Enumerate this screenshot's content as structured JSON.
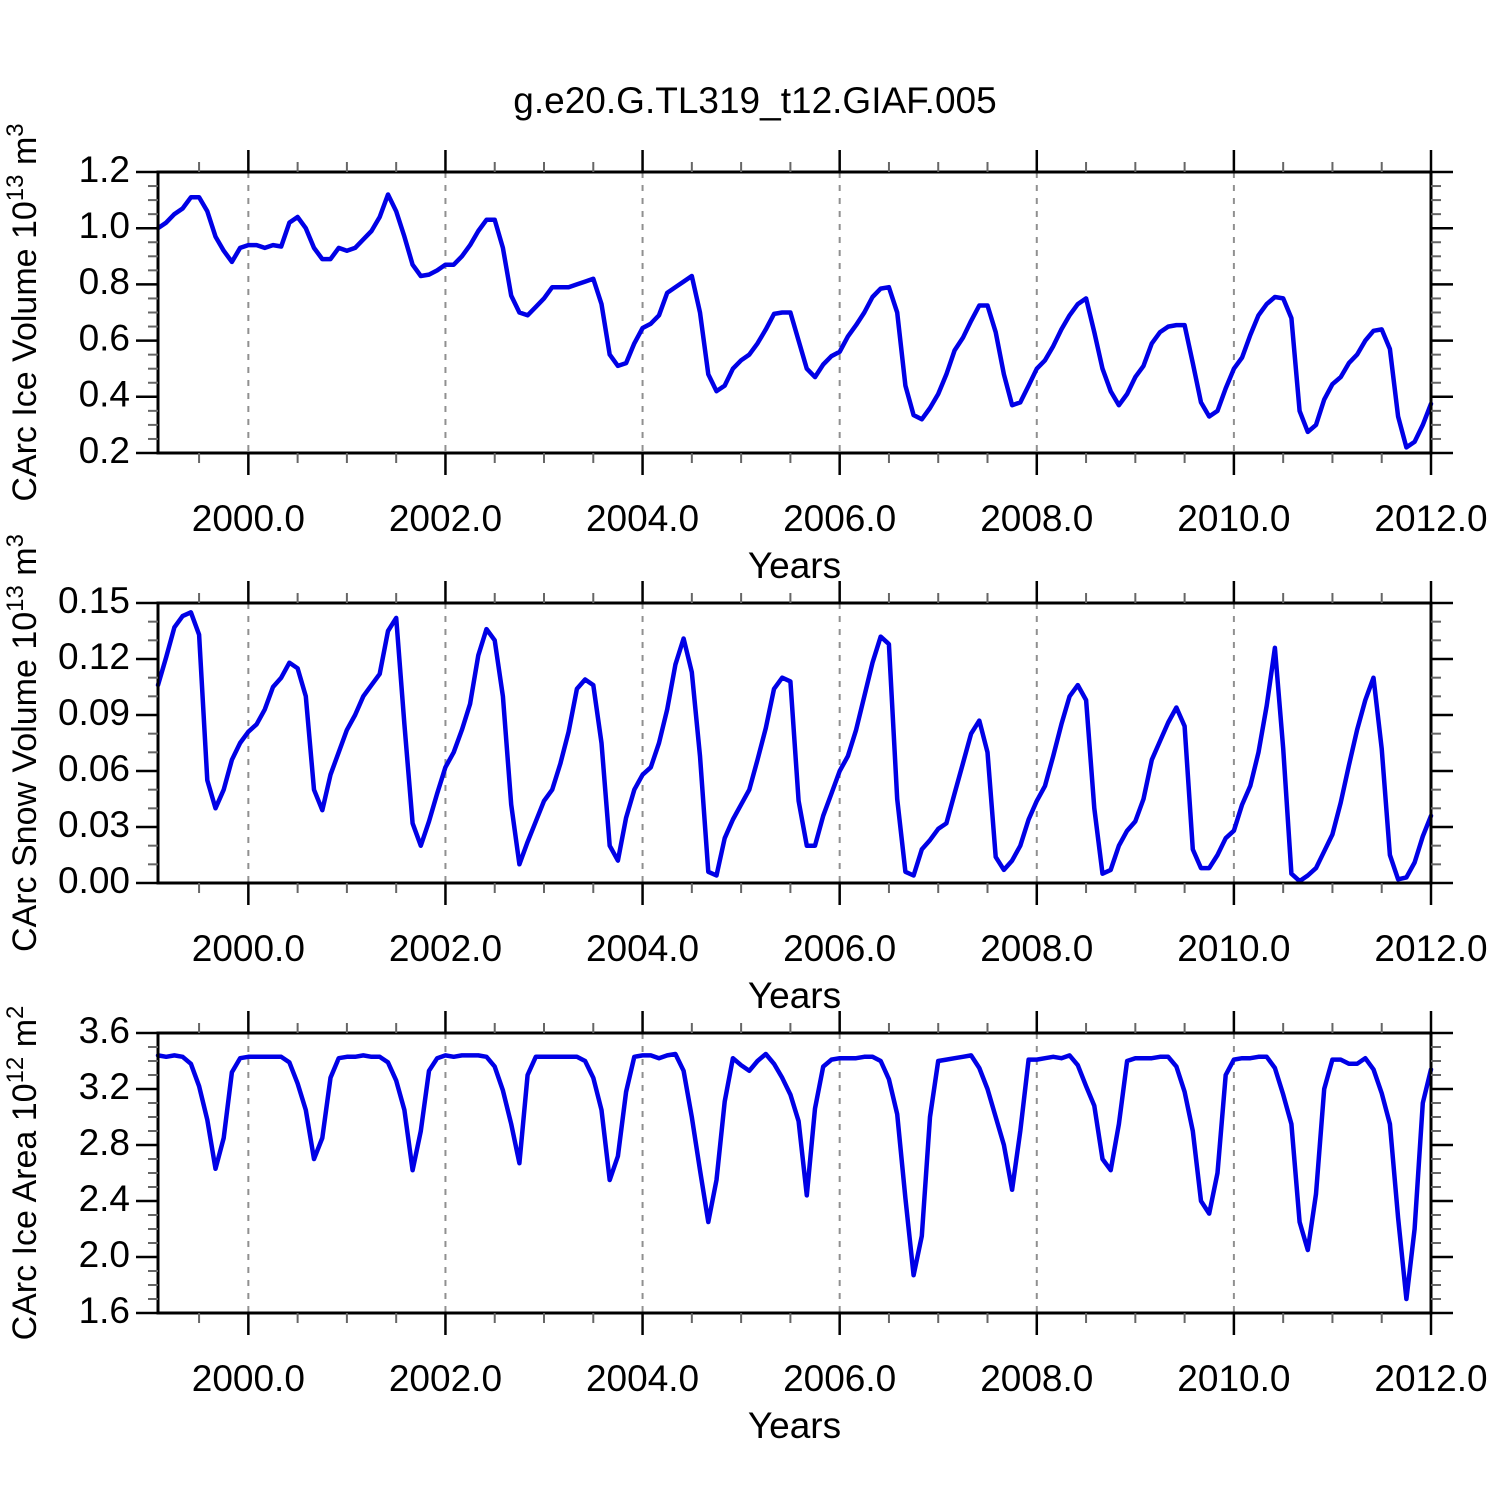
{
  "title": "g.e20.G.TL319_t12.GIAF.005",
  "colors": {
    "line": "#0000e6",
    "frame": "#000000",
    "grid": "#909090",
    "minor_tick": "#666666",
    "text": "#000000",
    "background": "#ffffff"
  },
  "chart_data": [
    {
      "type": "line",
      "id": "ice-volume",
      "ylabel_plain": "CArc Ice Volume 10^13 m^3",
      "ylabel_segments": [
        [
          "CArc Ice Volume 10",
          0
        ],
        [
          "13",
          1
        ],
        [
          " m",
          0
        ],
        [
          "3",
          1
        ]
      ],
      "xlabel": "Years",
      "ylim": [
        0.2,
        1.2
      ],
      "yticks": [
        0.2,
        0.4,
        0.6,
        0.8,
        1.0,
        1.2
      ],
      "ytick_labels": [
        "0.2",
        "0.4",
        "0.6",
        "0.8",
        "1.0",
        "1.2"
      ],
      "y_minor_step": 0.05,
      "xlim": [
        1999.0833,
        2012.0
      ],
      "xticks": [
        2000,
        2002,
        2004,
        2006,
        2008,
        2010,
        2012
      ],
      "xtick_labels": [
        "2000.0",
        "2002.0",
        "2004.0",
        "2006.0",
        "2008.0",
        "2010.0",
        "2012.0"
      ],
      "x_minor_step": 0.5,
      "gridline_years": [
        2000,
        2002,
        2004,
        2006,
        2008,
        2010
      ],
      "x_start": 1999.0833,
      "x_step": 0.083333,
      "values": [
        1.0,
        1.02,
        1.05,
        1.07,
        1.11,
        1.11,
        1.06,
        0.97,
        0.92,
        0.88,
        0.93,
        0.94,
        0.94,
        0.93,
        0.94,
        0.935,
        1.02,
        1.04,
        1.0,
        0.93,
        0.89,
        0.89,
        0.93,
        0.92,
        0.93,
        0.96,
        0.99,
        1.04,
        1.12,
        1.06,
        0.97,
        0.87,
        0.83,
        0.835,
        0.85,
        0.87,
        0.87,
        0.9,
        0.94,
        0.99,
        1.03,
        1.03,
        0.93,
        0.76,
        0.7,
        0.69,
        0.72,
        0.75,
        0.79,
        0.79,
        0.79,
        0.8,
        0.81,
        0.82,
        0.73,
        0.55,
        0.51,
        0.52,
        0.59,
        0.645,
        0.66,
        0.69,
        0.77,
        0.79,
        0.81,
        0.83,
        0.7,
        0.48,
        0.42,
        0.44,
        0.5,
        0.53,
        0.55,
        0.59,
        0.64,
        0.695,
        0.7,
        0.7,
        0.6,
        0.5,
        0.47,
        0.515,
        0.545,
        0.56,
        0.615,
        0.655,
        0.7,
        0.755,
        0.785,
        0.79,
        0.7,
        0.44,
        0.335,
        0.32,
        0.36,
        0.41,
        0.48,
        0.565,
        0.61,
        0.67,
        0.725,
        0.725,
        0.63,
        0.48,
        0.37,
        0.38,
        0.44,
        0.5,
        0.53,
        0.58,
        0.64,
        0.69,
        0.73,
        0.75,
        0.63,
        0.5,
        0.42,
        0.37,
        0.41,
        0.47,
        0.51,
        0.59,
        0.63,
        0.65,
        0.655,
        0.655,
        0.52,
        0.38,
        0.33,
        0.35,
        0.43,
        0.5,
        0.54,
        0.62,
        0.69,
        0.73,
        0.755,
        0.75,
        0.68,
        0.35,
        0.275,
        0.3,
        0.39,
        0.445,
        0.47,
        0.52,
        0.55,
        0.6,
        0.635,
        0.64,
        0.57,
        0.33,
        0.22,
        0.24,
        0.3,
        0.375
      ]
    },
    {
      "type": "line",
      "id": "snow-volume",
      "ylabel_plain": "CArc Snow Volume 10^13 m^3",
      "ylabel_segments": [
        [
          "CArc Snow Volume 10",
          0
        ],
        [
          "13",
          1
        ],
        [
          " m",
          0
        ],
        [
          "3",
          1
        ]
      ],
      "xlabel": "Years",
      "ylim": [
        0.0,
        0.15
      ],
      "yticks": [
        0.0,
        0.03,
        0.06,
        0.09,
        0.12,
        0.15
      ],
      "ytick_labels": [
        "0.00",
        "0.03",
        "0.06",
        "0.09",
        "0.12",
        "0.15"
      ],
      "y_minor_step": 0.01,
      "xlim": [
        1999.0833,
        2012.0
      ],
      "xticks": [
        2000,
        2002,
        2004,
        2006,
        2008,
        2010,
        2012
      ],
      "xtick_labels": [
        "2000.0",
        "2002.0",
        "2004.0",
        "2006.0",
        "2008.0",
        "2010.0",
        "2012.0"
      ],
      "x_minor_step": 0.5,
      "gridline_years": [
        2000,
        2002,
        2004,
        2006,
        2008,
        2010
      ],
      "x_start": 1999.0833,
      "x_step": 0.083333,
      "values": [
        0.106,
        0.121,
        0.137,
        0.143,
        0.145,
        0.133,
        0.055,
        0.04,
        0.05,
        0.066,
        0.075,
        0.081,
        0.085,
        0.093,
        0.105,
        0.11,
        0.118,
        0.115,
        0.1,
        0.05,
        0.039,
        0.058,
        0.07,
        0.082,
        0.09,
        0.1,
        0.106,
        0.112,
        0.135,
        0.142,
        0.085,
        0.032,
        0.02,
        0.033,
        0.048,
        0.062,
        0.07,
        0.082,
        0.096,
        0.122,
        0.136,
        0.13,
        0.1,
        0.042,
        0.01,
        0.022,
        0.033,
        0.044,
        0.05,
        0.064,
        0.081,
        0.104,
        0.109,
        0.106,
        0.075,
        0.02,
        0.012,
        0.035,
        0.05,
        0.058,
        0.062,
        0.075,
        0.093,
        0.117,
        0.131,
        0.113,
        0.068,
        0.006,
        0.004,
        0.024,
        0.034,
        0.042,
        0.05,
        0.066,
        0.083,
        0.104,
        0.11,
        0.108,
        0.044,
        0.02,
        0.02,
        0.036,
        0.048,
        0.06,
        0.068,
        0.082,
        0.1,
        0.118,
        0.132,
        0.128,
        0.045,
        0.006,
        0.004,
        0.018,
        0.023,
        0.029,
        0.032,
        0.048,
        0.064,
        0.08,
        0.087,
        0.07,
        0.014,
        0.007,
        0.012,
        0.02,
        0.034,
        0.044,
        0.052,
        0.068,
        0.085,
        0.1,
        0.106,
        0.098,
        0.04,
        0.005,
        0.007,
        0.02,
        0.028,
        0.033,
        0.045,
        0.066,
        0.076,
        0.086,
        0.094,
        0.084,
        0.018,
        0.008,
        0.008,
        0.015,
        0.024,
        0.028,
        0.042,
        0.052,
        0.07,
        0.095,
        0.126,
        0.072,
        0.005,
        0.001,
        0.004,
        0.008,
        0.017,
        0.026,
        0.043,
        0.063,
        0.082,
        0.098,
        0.11,
        0.072,
        0.015,
        0.002,
        0.003,
        0.011,
        0.025,
        0.036
      ]
    },
    {
      "type": "line",
      "id": "ice-area",
      "ylabel_plain": "CArc Ice Area 10^12 m^2",
      "ylabel_segments": [
        [
          "CArc Ice Area 10",
          0
        ],
        [
          "12",
          1
        ],
        [
          " m",
          0
        ],
        [
          "2",
          1
        ]
      ],
      "xlabel": "Years",
      "ylim": [
        1.6,
        3.6
      ],
      "yticks": [
        1.6,
        2.0,
        2.4,
        2.8,
        3.2,
        3.6
      ],
      "ytick_labels": [
        "1.6",
        "2.0",
        "2.4",
        "2.8",
        "3.2",
        "3.6"
      ],
      "y_minor_step": 0.1,
      "xlim": [
        1999.0833,
        2012.0
      ],
      "xticks": [
        2000,
        2002,
        2004,
        2006,
        2008,
        2010,
        2012
      ],
      "xtick_labels": [
        "2000.0",
        "2002.0",
        "2004.0",
        "2006.0",
        "2008.0",
        "2010.0",
        "2012.0"
      ],
      "x_minor_step": 0.5,
      "gridline_years": [
        2000,
        2002,
        2004,
        2006,
        2008,
        2010
      ],
      "x_start": 1999.0833,
      "x_step": 0.083333,
      "values": [
        3.44,
        3.43,
        3.44,
        3.43,
        3.38,
        3.22,
        2.98,
        2.63,
        2.85,
        3.32,
        3.42,
        3.43,
        3.43,
        3.43,
        3.43,
        3.43,
        3.39,
        3.24,
        3.05,
        2.7,
        2.85,
        3.28,
        3.42,
        3.43,
        3.43,
        3.44,
        3.43,
        3.43,
        3.39,
        3.26,
        3.05,
        2.62,
        2.9,
        3.33,
        3.42,
        3.44,
        3.43,
        3.44,
        3.44,
        3.44,
        3.43,
        3.36,
        3.19,
        2.95,
        2.67,
        3.3,
        3.43,
        3.43,
        3.43,
        3.43,
        3.43,
        3.43,
        3.4,
        3.28,
        3.05,
        2.55,
        2.72,
        3.18,
        3.43,
        3.44,
        3.44,
        3.42,
        3.44,
        3.45,
        3.33,
        3.0,
        2.62,
        2.25,
        2.55,
        3.11,
        3.42,
        3.37,
        3.33,
        3.4,
        3.45,
        3.38,
        3.28,
        3.16,
        2.97,
        2.44,
        3.06,
        3.36,
        3.41,
        3.42,
        3.42,
        3.42,
        3.43,
        3.43,
        3.4,
        3.27,
        3.02,
        2.42,
        1.87,
        2.15,
        3.0,
        3.4,
        3.41,
        3.42,
        3.43,
        3.44,
        3.35,
        3.2,
        3.0,
        2.8,
        2.48,
        2.9,
        3.41,
        3.41,
        3.42,
        3.43,
        3.42,
        3.44,
        3.37,
        3.22,
        3.08,
        2.7,
        2.62,
        2.95,
        3.4,
        3.42,
        3.42,
        3.42,
        3.43,
        3.43,
        3.36,
        3.18,
        2.9,
        2.4,
        2.31,
        2.6,
        3.3,
        3.41,
        3.42,
        3.42,
        3.43,
        3.43,
        3.35,
        3.16,
        2.95,
        2.25,
        2.05,
        2.45,
        3.2,
        3.41,
        3.41,
        3.38,
        3.38,
        3.42,
        3.34,
        3.17,
        2.95,
        2.28,
        1.7,
        2.2,
        3.1,
        3.34
      ]
    }
  ]
}
